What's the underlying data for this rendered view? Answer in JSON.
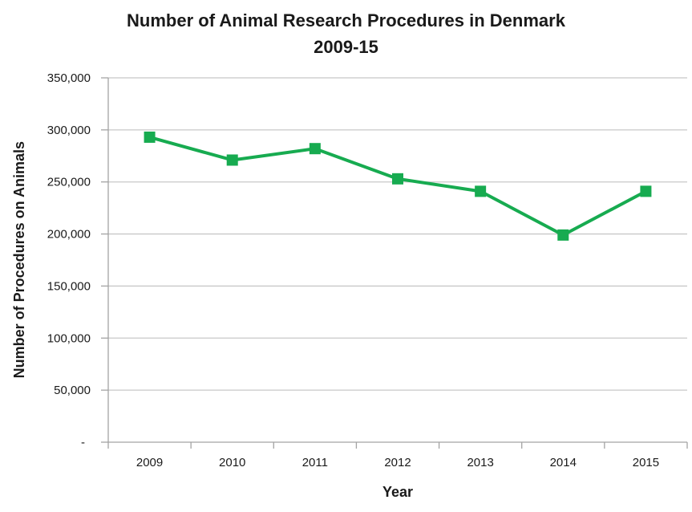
{
  "chart_data": {
    "type": "line",
    "title": "Number of Animal Research Procedures in Denmark 2009-15",
    "title_lines": [
      "Number of Animal Research Procedures in Denmark",
      "2009-15"
    ],
    "xlabel": "Year",
    "ylabel": "Number of Procedures on Animals",
    "categories": [
      "2009",
      "2010",
      "2011",
      "2012",
      "2013",
      "2014",
      "2015"
    ],
    "series": [
      {
        "name": "Number of Procedures on Animals",
        "values": [
          293000,
          271000,
          282000,
          253000,
          241000,
          199000,
          241000
        ]
      }
    ],
    "ylim": [
      0,
      350000
    ],
    "ytick_step": 50000,
    "ytick_labels": [
      "-",
      "50,000",
      "100,000",
      "150,000",
      "200,000",
      "250,000",
      "300,000",
      "350,000"
    ],
    "grid": "horizontal",
    "legend": "none",
    "marker": "square",
    "line_color": "#17AB50"
  },
  "style": {
    "grid_color": "#C8C8C8",
    "axis_color": "#A3A3A3",
    "text_color": "#1A1A1A",
    "background": "#FFFFFF"
  }
}
